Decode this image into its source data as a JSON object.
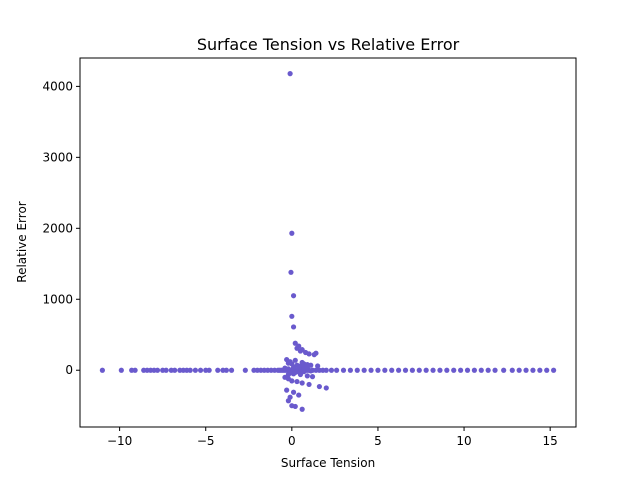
{
  "chart_data": {
    "type": "scatter",
    "title": "Surface Tension vs Relative Error",
    "xlabel": "Surface Tension",
    "ylabel": "Relative Error",
    "xlim": [
      -12.3,
      16.5
    ],
    "ylim": [
      -800,
      4400
    ],
    "x_ticks": [
      -10,
      -5,
      0,
      5,
      10,
      15
    ],
    "y_ticks": [
      0,
      1000,
      2000,
      3000,
      4000
    ],
    "grid": false,
    "marker_color": "#6a5acd",
    "series": [
      {
        "name": "",
        "x": [
          -11.0,
          -9.9,
          -9.3,
          -9.1,
          -8.6,
          -8.4,
          -8.2,
          -8.0,
          -7.8,
          -7.5,
          -7.3,
          -7.0,
          -6.8,
          -6.5,
          -6.3,
          -6.1,
          -5.9,
          -5.6,
          -5.3,
          -5.0,
          -4.8,
          -4.3,
          -4.0,
          -3.8,
          -3.5,
          -2.7,
          -2.2,
          -2.0,
          -1.8,
          -1.6,
          -1.4,
          -1.2,
          -1.0,
          -0.8,
          -0.7,
          -0.6,
          -0.5,
          -0.4,
          -0.3,
          -0.2,
          -0.1,
          0.0,
          0.05,
          0.1,
          0.15,
          0.2,
          0.3,
          0.4,
          0.5,
          0.6,
          0.7,
          0.8,
          0.9,
          1.0,
          1.2,
          1.4,
          1.6,
          1.8,
          2.0,
          2.3,
          2.6,
          3.0,
          3.4,
          3.8,
          4.2,
          4.6,
          5.0,
          5.4,
          5.8,
          6.2,
          6.6,
          7.0,
          7.4,
          7.8,
          8.2,
          8.6,
          9.0,
          9.4,
          9.8,
          10.2,
          10.6,
          11.0,
          11.4,
          11.8,
          12.3,
          12.8,
          13.2,
          13.6,
          14.0,
          14.4,
          14.8,
          15.2,
          -0.1,
          0.0,
          -0.05,
          0.1,
          0.0,
          0.1,
          0.2,
          0.4,
          0.6,
          0.8,
          1.0,
          0.3,
          0.5,
          1.3,
          1.4,
          -0.3,
          -0.1,
          0.2,
          0.6,
          0.7,
          0.9,
          1.1,
          1.5,
          -0.2,
          0.0,
          0.3,
          0.5,
          0.7,
          0.9,
          -0.4,
          -0.2,
          0.1,
          0.4,
          0.8,
          0.2,
          0.5,
          1.2,
          -0.2,
          0.0,
          0.3,
          0.6,
          1.0,
          1.6,
          2.0,
          -0.3,
          0.1,
          0.4,
          -0.1,
          -0.2,
          0.2,
          0.6,
          0.0,
          -0.4,
          -0.2,
          -0.1,
          0.3,
          0.7,
          1.1,
          0.1,
          0.5,
          0.9
        ],
        "y": [
          0,
          0,
          0,
          0,
          0,
          0,
          0,
          0,
          0,
          0,
          0,
          0,
          0,
          0,
          0,
          0,
          0,
          0,
          0,
          0,
          0,
          0,
          0,
          0,
          0,
          0,
          0,
          0,
          0,
          0,
          0,
          0,
          0,
          0,
          0,
          0,
          0,
          0,
          0,
          0,
          0,
          0,
          0,
          0,
          0,
          0,
          0,
          0,
          0,
          0,
          0,
          0,
          0,
          0,
          0,
          0,
          0,
          0,
          0,
          0,
          0,
          0,
          0,
          0,
          0,
          0,
          0,
          0,
          0,
          0,
          0,
          0,
          0,
          0,
          0,
          0,
          0,
          0,
          0,
          0,
          0,
          0,
          0,
          0,
          0,
          0,
          0,
          0,
          0,
          0,
          0,
          0,
          4180,
          1930,
          1380,
          1050,
          760,
          610,
          380,
          340,
          290,
          250,
          230,
          310,
          270,
          220,
          240,
          150,
          120,
          140,
          110,
          90,
          80,
          70,
          60,
          100,
          90,
          70,
          60,
          50,
          40,
          30,
          20,
          40,
          30,
          20,
          -30,
          -60,
          -90,
          -120,
          -150,
          -160,
          -180,
          -200,
          -230,
          -250,
          -280,
          -310,
          -350,
          -380,
          -430,
          -510,
          -550,
          -500,
          -100,
          -60,
          -40,
          -20,
          -20,
          -10,
          -50,
          -30,
          -80
        ]
      }
    ]
  }
}
